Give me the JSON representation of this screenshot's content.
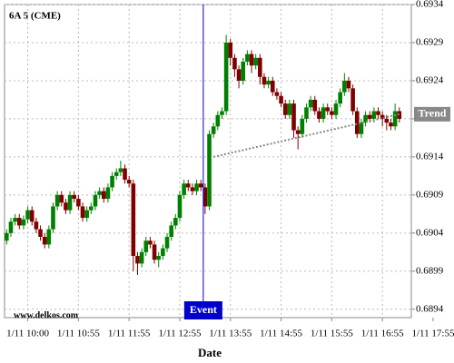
{
  "chart_data": {
    "type": "candlestick",
    "title": "6A 5 (CME)",
    "watermark": "www.delkos.com",
    "x_label": "Date",
    "categories": [
      null,
      null,
      null,
      null,
      null,
      "1/11 10:00",
      null,
      null,
      null,
      null,
      null,
      null,
      null,
      null,
      null,
      null,
      null,
      "1/11 10:55",
      null,
      null,
      null,
      null,
      null,
      null,
      null,
      null,
      null,
      null,
      null,
      "1/11 11:55",
      null,
      null,
      null,
      null,
      null,
      null,
      null,
      null,
      null,
      null,
      null,
      "1/11 12:55",
      null,
      null,
      null,
      null,
      null,
      null,
      null,
      null,
      null,
      null,
      null,
      "1/11 13:55",
      null,
      null,
      null,
      null,
      null,
      null,
      null,
      null,
      null,
      null,
      null,
      "1/11 14:55",
      null,
      null,
      null,
      null,
      null,
      null,
      null,
      null,
      null,
      null,
      null,
      "1/11 15:55",
      null,
      null,
      null,
      null,
      null,
      null,
      null,
      null,
      null,
      null,
      null,
      "1/11 16:55",
      null,
      null,
      null,
      null,
      null,
      null,
      null,
      null,
      null,
      null,
      null,
      "1/11 17:55"
    ],
    "ohlc": [
      [
        0.6903,
        0.69045,
        0.69025,
        0.6904
      ],
      [
        0.6904,
        0.6906,
        0.69035,
        0.69055
      ],
      [
        0.69055,
        0.69065,
        0.6905,
        0.6906
      ],
      [
        0.6906,
        0.69065,
        0.69045,
        0.6905
      ],
      [
        0.6905,
        0.69063,
        0.69045,
        0.69058
      ],
      [
        0.69058,
        0.69075,
        0.69053,
        0.6907
      ],
      [
        0.6907,
        0.69075,
        0.6905,
        0.69055
      ],
      [
        0.69055,
        0.6906,
        0.6904,
        0.69045
      ],
      [
        0.69045,
        0.6905,
        0.6903,
        0.69035
      ],
      [
        0.69035,
        0.6904,
        0.6902,
        0.69025
      ],
      [
        0.69025,
        0.6905,
        0.6902,
        0.69045
      ],
      [
        0.69045,
        0.6908,
        0.6904,
        0.69075
      ],
      [
        0.69075,
        0.69095,
        0.6907,
        0.6909
      ],
      [
        0.6909,
        0.69095,
        0.69075,
        0.6908
      ],
      [
        0.6908,
        0.69085,
        0.69065,
        0.6907
      ],
      [
        0.6907,
        0.69095,
        0.69065,
        0.6909
      ],
      [
        0.6909,
        0.69095,
        0.6908,
        0.69085
      ],
      [
        0.69085,
        0.6909,
        0.6907,
        0.69075
      ],
      [
        0.69075,
        0.6908,
        0.69055,
        0.6906
      ],
      [
        0.6906,
        0.69075,
        0.69055,
        0.6907
      ],
      [
        0.6907,
        0.6908,
        0.69065,
        0.69075
      ],
      [
        0.69075,
        0.69095,
        0.6907,
        0.6909
      ],
      [
        0.6909,
        0.691,
        0.69085,
        0.69095
      ],
      [
        0.69095,
        0.691,
        0.6908,
        0.69085
      ],
      [
        0.69085,
        0.69105,
        0.6908,
        0.691
      ],
      [
        0.691,
        0.6912,
        0.69095,
        0.69115
      ],
      [
        0.69115,
        0.69125,
        0.6911,
        0.6912
      ],
      [
        0.6912,
        0.69135,
        0.69115,
        0.69125
      ],
      [
        0.69125,
        0.6913,
        0.69105,
        0.6911
      ],
      [
        0.6911,
        0.69115,
        0.691,
        0.69105
      ],
      [
        0.69105,
        0.6911,
        0.6899,
        0.6901
      ],
      [
        0.6901,
        0.69015,
        0.68985,
        0.69
      ],
      [
        0.69,
        0.6902,
        0.68995,
        0.69015
      ],
      [
        0.69015,
        0.69035,
        0.6901,
        0.6903
      ],
      [
        0.6903,
        0.69035,
        0.6902,
        0.69025
      ],
      [
        0.69025,
        0.6903,
        0.69,
        0.69005
      ],
      [
        0.69005,
        0.69015,
        0.68995,
        0.6901
      ],
      [
        0.6901,
        0.69025,
        0.69005,
        0.6902
      ],
      [
        0.6902,
        0.6904,
        0.69015,
        0.69035
      ],
      [
        0.69035,
        0.69055,
        0.6903,
        0.6905
      ],
      [
        0.6905,
        0.69065,
        0.69045,
        0.6906
      ],
      [
        0.6906,
        0.69095,
        0.69055,
        0.6909
      ],
      [
        0.6909,
        0.6911,
        0.69085,
        0.69105
      ],
      [
        0.69105,
        0.6911,
        0.69095,
        0.691
      ],
      [
        0.691,
        0.69105,
        0.6909,
        0.69095
      ],
      [
        0.69095,
        0.6911,
        0.6909,
        0.69105
      ],
      [
        0.69105,
        0.6911,
        0.69095,
        0.691
      ],
      [
        0.691,
        0.69105,
        0.69065,
        0.69075
      ],
      [
        0.69075,
        0.69175,
        0.6907,
        0.6917
      ],
      [
        0.6917,
        0.69185,
        0.69165,
        0.6918
      ],
      [
        0.6918,
        0.692,
        0.69175,
        0.69195
      ],
      [
        0.69195,
        0.69205,
        0.6919,
        0.692
      ],
      [
        0.692,
        0.693,
        0.69195,
        0.6929
      ],
      [
        0.6929,
        0.69295,
        0.6926,
        0.6927
      ],
      [
        0.6927,
        0.69275,
        0.69245,
        0.69255
      ],
      [
        0.69255,
        0.6926,
        0.6923,
        0.6924
      ],
      [
        0.6924,
        0.6927,
        0.69235,
        0.69265
      ],
      [
        0.69265,
        0.6928,
        0.6926,
        0.69275
      ],
      [
        0.69275,
        0.6928,
        0.6925,
        0.6926
      ],
      [
        0.6926,
        0.69275,
        0.69255,
        0.6927
      ],
      [
        0.6927,
        0.69275,
        0.69235,
        0.69245
      ],
      [
        0.69245,
        0.6925,
        0.6923,
        0.69235
      ],
      [
        0.69235,
        0.69245,
        0.6923,
        0.6924
      ],
      [
        0.6924,
        0.69245,
        0.6922,
        0.69225
      ],
      [
        0.69225,
        0.6923,
        0.69215,
        0.6922
      ],
      [
        0.6922,
        0.69225,
        0.69205,
        0.6921
      ],
      [
        0.6921,
        0.69215,
        0.6919,
        0.69195
      ],
      [
        0.69195,
        0.69215,
        0.6919,
        0.6921
      ],
      [
        0.6921,
        0.69215,
        0.69165,
        0.69175
      ],
      [
        0.69175,
        0.6918,
        0.6915,
        0.6917
      ],
      [
        0.6917,
        0.69195,
        0.69165,
        0.6919
      ],
      [
        0.6919,
        0.6921,
        0.69185,
        0.69205
      ],
      [
        0.69205,
        0.6922,
        0.692,
        0.69215
      ],
      [
        0.69215,
        0.6922,
        0.69195,
        0.692
      ],
      [
        0.692,
        0.69205,
        0.69185,
        0.6919
      ],
      [
        0.6919,
        0.6921,
        0.69185,
        0.69205
      ],
      [
        0.69205,
        0.6921,
        0.69195,
        0.692
      ],
      [
        0.692,
        0.69205,
        0.6919,
        0.69195
      ],
      [
        0.69195,
        0.69215,
        0.6919,
        0.6921
      ],
      [
        0.6921,
        0.6923,
        0.69205,
        0.69225
      ],
      [
        0.69225,
        0.6925,
        0.6922,
        0.6924
      ],
      [
        0.6924,
        0.69245,
        0.69225,
        0.6923
      ],
      [
        0.6923,
        0.69235,
        0.69195,
        0.692
      ],
      [
        0.692,
        0.69205,
        0.69165,
        0.6917
      ],
      [
        0.6917,
        0.6919,
        0.69165,
        0.69185
      ],
      [
        0.69185,
        0.692,
        0.6918,
        0.69195
      ],
      [
        0.69195,
        0.692,
        0.69185,
        0.6919
      ],
      [
        0.6919,
        0.69205,
        0.69185,
        0.692
      ],
      [
        0.692,
        0.69205,
        0.6919,
        0.69195
      ],
      [
        0.69195,
        0.692,
        0.6918,
        0.6919
      ],
      [
        0.6919,
        0.69195,
        0.69175,
        0.69185
      ],
      [
        0.69185,
        0.6919,
        0.69175,
        0.6918
      ],
      [
        0.6918,
        0.6921,
        0.69175,
        0.692
      ],
      [
        0.692,
        0.69205,
        0.69185,
        0.6919
      ],
      null,
      null,
      null,
      null,
      null,
      null,
      null,
      null
    ],
    "up_color": "#008000",
    "down_color": "#800000",
    "ylim": [
      0.68929,
      0.6934
    ],
    "yticks": [
      0.6894,
      0.6899,
      0.6904,
      0.6909,
      0.6914,
      0.6919,
      0.6924,
      0.6929,
      0.6934
    ],
    "grid": true,
    "event": {
      "label": "Event",
      "index": 47,
      "color": "#0000cc"
    },
    "trend": {
      "label": "Trend",
      "start_index": 49,
      "end_index": 93,
      "start": 0.6914,
      "end": 0.69196,
      "color": "#888888"
    }
  }
}
